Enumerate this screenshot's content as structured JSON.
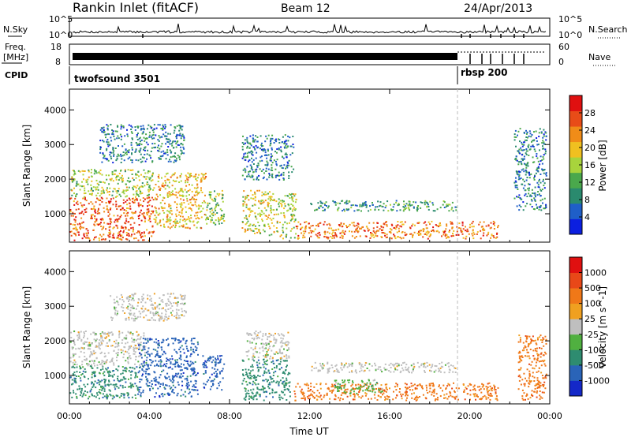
{
  "header": {
    "station": "Rankin Inlet (fitACF)",
    "beam": "Beam 12",
    "date": "24/Apr/2013"
  },
  "summary_panels": {
    "nsky": {
      "label": "N.Sky",
      "ticks": [
        "10^5",
        "10^0"
      ]
    },
    "nsearch": {
      "label": "N.Search",
      "ticks": [
        "10^5",
        "10^0"
      ]
    },
    "freq": {
      "label_top": "Freq.",
      "label_bottom": "[MHz]",
      "ticks": [
        18,
        8
      ]
    },
    "nave": {
      "label": "Nave",
      "ticks": [
        60,
        0
      ]
    },
    "cpid": {
      "label": "CPID",
      "segments": [
        {
          "name": "twofsound 3501",
          "start_hour": 0,
          "end_hour": 19.6
        },
        {
          "name": "rbsp 200",
          "start_hour": 19.6,
          "end_hour": 24
        }
      ]
    }
  },
  "chart_data": [
    {
      "type": "heatmap",
      "title": "",
      "xlabel": "",
      "ylabel": "Slant Range [km]",
      "xlim": [
        0,
        24
      ],
      "ylim": [
        180,
        4600
      ],
      "yticks": [
        1000,
        2000,
        3000,
        4000
      ],
      "colorbar": {
        "label": "Power [dB]",
        "ticks": [
          4,
          8,
          12,
          16,
          20,
          24,
          28
        ],
        "range": [
          0,
          32
        ],
        "colors": [
          "#0b1fe0",
          "#1f5fc8",
          "#2a8a6e",
          "#4aa84c",
          "#a8d43c",
          "#f0c020",
          "#f08c18",
          "#e84c18",
          "#e01010"
        ]
      },
      "scatter_regions": [
        {
          "h0": 0.0,
          "h1": 4.2,
          "r0": 250,
          "r1": 1500,
          "val": 26
        },
        {
          "h0": 0.0,
          "h1": 4.2,
          "r0": 1500,
          "r1": 2300,
          "val": 16
        },
        {
          "h0": 4.2,
          "h1": 6.8,
          "r0": 600,
          "r1": 2200,
          "val": 20
        },
        {
          "h0": 6.8,
          "h1": 7.7,
          "r0": 700,
          "r1": 1700,
          "val": 14
        },
        {
          "h0": 8.6,
          "h1": 10.2,
          "r0": 400,
          "r1": 1700,
          "val": 18
        },
        {
          "h0": 10.3,
          "h1": 11.3,
          "r0": 300,
          "r1": 1600,
          "val": 16
        },
        {
          "h0": 11.3,
          "h1": 21.4,
          "r0": 300,
          "r1": 800,
          "val": 24
        },
        {
          "h0": 12.0,
          "h1": 19.3,
          "r0": 1100,
          "r1": 1400,
          "val": 10
        },
        {
          "h0": 1.5,
          "h1": 5.7,
          "r0": 2500,
          "r1": 3600,
          "val": 8
        },
        {
          "h0": 8.6,
          "h1": 11.2,
          "r0": 2000,
          "r1": 3300,
          "val": 8
        },
        {
          "h0": 22.2,
          "h1": 23.8,
          "r0": 1100,
          "r1": 3500,
          "val": 8
        }
      ]
    },
    {
      "type": "heatmap",
      "title": "",
      "xlabel": "Time UT",
      "ylabel": "Slant Range [km]",
      "xlim": [
        0,
        24
      ],
      "ylim": [
        180,
        4600
      ],
      "xticks": [
        "00:00",
        "04:00",
        "08:00",
        "12:00",
        "16:00",
        "20:00",
        "00:00"
      ],
      "yticks": [
        1000,
        2000,
        3000,
        4000
      ],
      "colorbar": {
        "label": "Velocity [m s^-1]",
        "ticks": [
          "1000",
          "500",
          "100",
          "25",
          "-25",
          "-100",
          "-500",
          "-1000"
        ],
        "colors": [
          "#1428c8",
          "#2a64b8",
          "#2e8c70",
          "#50b040",
          "#bfbfbf",
          "#f0a020",
          "#f07818",
          "#e84818",
          "#e01010"
        ]
      },
      "scatter_regions": [
        {
          "h0": 0.0,
          "h1": 3.4,
          "r0": 350,
          "r1": 1300,
          "cat": 2
        },
        {
          "h0": 0.0,
          "h1": 3.8,
          "r0": 1300,
          "r1": 2300,
          "cat": 4
        },
        {
          "h0": 3.4,
          "h1": 6.4,
          "r0": 400,
          "r1": 2100,
          "cat": 1
        },
        {
          "h0": 6.6,
          "h1": 7.7,
          "r0": 600,
          "r1": 1600,
          "cat": 1
        },
        {
          "h0": 8.6,
          "h1": 11.0,
          "r0": 300,
          "r1": 1500,
          "cat": 2
        },
        {
          "h0": 8.8,
          "h1": 11.0,
          "r0": 1500,
          "r1": 2300,
          "cat": 4
        },
        {
          "h0": 11.2,
          "h1": 21.4,
          "r0": 300,
          "r1": 800,
          "cat": 6
        },
        {
          "h0": 13.2,
          "h1": 15.6,
          "r0": 500,
          "r1": 900,
          "cat": 3
        },
        {
          "h0": 12.0,
          "h1": 19.3,
          "r0": 1100,
          "r1": 1400,
          "cat": 4
        },
        {
          "h0": 2.0,
          "h1": 5.8,
          "r0": 2600,
          "r1": 3400,
          "cat": 4
        },
        {
          "h0": 22.4,
          "h1": 23.8,
          "r0": 300,
          "r1": 2200,
          "cat": 6
        }
      ]
    }
  ]
}
